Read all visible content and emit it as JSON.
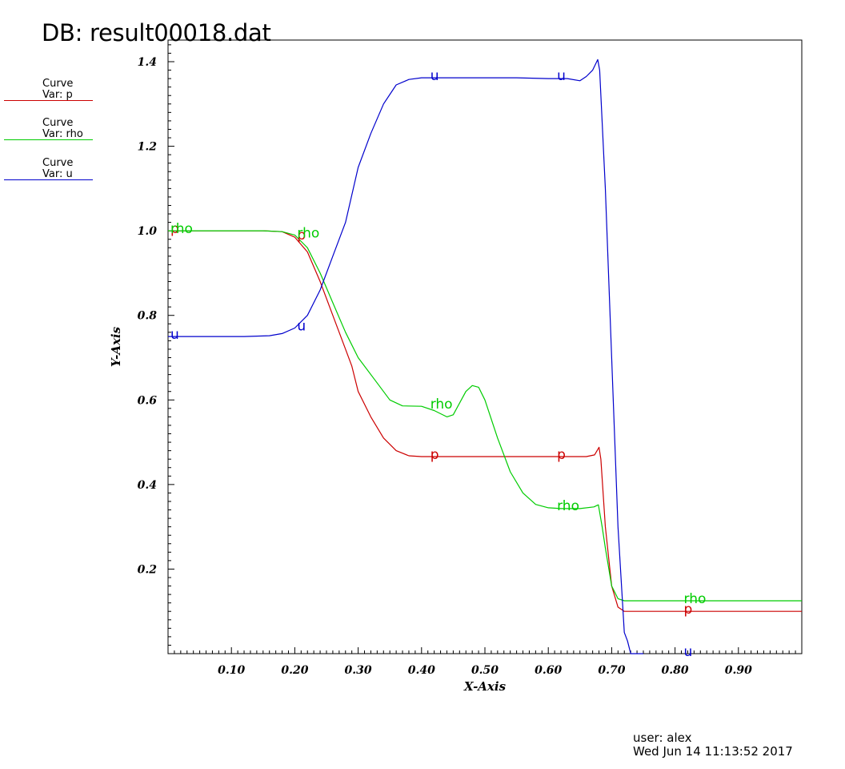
{
  "header": {
    "db_title": "DB: result00018.dat"
  },
  "legend": [
    {
      "line1": "Curve",
      "line2": "Var: p",
      "color": "#cc0000"
    },
    {
      "line1": "Curve",
      "line2": "Var: rho",
      "color": "#00cc00"
    },
    {
      "line1": "Curve",
      "line2": "Var: u",
      "color": "#0000cc"
    }
  ],
  "footer": {
    "user": "user: alex",
    "date": "Wed Jun 14 11:13:52 2017"
  },
  "chart_data": {
    "type": "line",
    "title": "",
    "xlabel": "X-Axis",
    "ylabel": "Y-Axis",
    "xlim": [
      0,
      1
    ],
    "ylim": [
      0,
      1.4
    ],
    "x_ticks": [
      "0.10",
      "0.20",
      "0.30",
      "0.40",
      "0.50",
      "0.60",
      "0.70",
      "0.80",
      "0.90"
    ],
    "x_tick_values": [
      0.1,
      0.2,
      0.3,
      0.4,
      0.5,
      0.6,
      0.7,
      0.8,
      0.9
    ],
    "y_ticks": [
      "0.2",
      "0.4",
      "0.6",
      "0.8",
      "1.0",
      "1.2",
      "1.4"
    ],
    "y_tick_values": [
      0.2,
      0.4,
      0.6,
      0.8,
      1.0,
      1.2,
      1.4
    ],
    "grid": false,
    "legend_position": "top-left",
    "series": [
      {
        "name": "p",
        "color": "#cc0000",
        "points": [
          [
            0.0,
            1.0
          ],
          [
            0.15,
            1.0
          ],
          [
            0.18,
            0.998
          ],
          [
            0.2,
            0.985
          ],
          [
            0.22,
            0.95
          ],
          [
            0.24,
            0.88
          ],
          [
            0.26,
            0.8
          ],
          [
            0.28,
            0.72
          ],
          [
            0.29,
            0.68
          ],
          [
            0.3,
            0.62
          ],
          [
            0.32,
            0.56
          ],
          [
            0.34,
            0.51
          ],
          [
            0.36,
            0.48
          ],
          [
            0.38,
            0.468
          ],
          [
            0.4,
            0.466
          ],
          [
            0.5,
            0.466
          ],
          [
            0.6,
            0.466
          ],
          [
            0.66,
            0.466
          ],
          [
            0.673,
            0.47
          ],
          [
            0.68,
            0.488
          ],
          [
            0.683,
            0.46
          ],
          [
            0.69,
            0.3
          ],
          [
            0.7,
            0.16
          ],
          [
            0.71,
            0.11
          ],
          [
            0.72,
            0.1
          ],
          [
            0.75,
            0.1
          ],
          [
            1.0,
            0.1
          ]
        ],
        "labels": [
          [
            0.0,
            1.0
          ],
          [
            0.2,
            0.985
          ],
          [
            0.41,
            0.466
          ],
          [
            0.61,
            0.466
          ],
          [
            0.81,
            0.1
          ]
        ]
      },
      {
        "name": "rho",
        "color": "#00cc00",
        "points": [
          [
            0.0,
            1.0
          ],
          [
            0.15,
            1.0
          ],
          [
            0.18,
            0.998
          ],
          [
            0.2,
            0.99
          ],
          [
            0.22,
            0.96
          ],
          [
            0.24,
            0.9
          ],
          [
            0.26,
            0.83
          ],
          [
            0.28,
            0.76
          ],
          [
            0.3,
            0.7
          ],
          [
            0.33,
            0.64
          ],
          [
            0.35,
            0.6
          ],
          [
            0.37,
            0.586
          ],
          [
            0.4,
            0.585
          ],
          [
            0.42,
            0.575
          ],
          [
            0.44,
            0.56
          ],
          [
            0.45,
            0.565
          ],
          [
            0.47,
            0.62
          ],
          [
            0.48,
            0.634
          ],
          [
            0.49,
            0.63
          ],
          [
            0.5,
            0.6
          ],
          [
            0.52,
            0.51
          ],
          [
            0.54,
            0.43
          ],
          [
            0.56,
            0.38
          ],
          [
            0.58,
            0.353
          ],
          [
            0.6,
            0.345
          ],
          [
            0.62,
            0.343
          ],
          [
            0.65,
            0.343
          ],
          [
            0.672,
            0.347
          ],
          [
            0.679,
            0.352
          ],
          [
            0.685,
            0.3
          ],
          [
            0.69,
            0.25
          ],
          [
            0.7,
            0.16
          ],
          [
            0.71,
            0.13
          ],
          [
            0.72,
            0.125
          ],
          [
            0.75,
            0.125
          ],
          [
            1.0,
            0.125
          ]
        ],
        "labels": [
          [
            0.0,
            1.0
          ],
          [
            0.2,
            0.99
          ],
          [
            0.41,
            0.585
          ],
          [
            0.61,
            0.345
          ],
          [
            0.81,
            0.125
          ]
        ]
      },
      {
        "name": "u",
        "color": "#0000cc",
        "points": [
          [
            0.0,
            0.75
          ],
          [
            0.12,
            0.75
          ],
          [
            0.16,
            0.752
          ],
          [
            0.18,
            0.757
          ],
          [
            0.2,
            0.77
          ],
          [
            0.22,
            0.8
          ],
          [
            0.24,
            0.86
          ],
          [
            0.26,
            0.94
          ],
          [
            0.28,
            1.02
          ],
          [
            0.3,
            1.15
          ],
          [
            0.32,
            1.23
          ],
          [
            0.34,
            1.3
          ],
          [
            0.36,
            1.345
          ],
          [
            0.38,
            1.358
          ],
          [
            0.4,
            1.362
          ],
          [
            0.45,
            1.362
          ],
          [
            0.5,
            1.362
          ],
          [
            0.55,
            1.362
          ],
          [
            0.6,
            1.36
          ],
          [
            0.63,
            1.36
          ],
          [
            0.65,
            1.355
          ],
          [
            0.66,
            1.365
          ],
          [
            0.67,
            1.38
          ],
          [
            0.678,
            1.405
          ],
          [
            0.681,
            1.38
          ],
          [
            0.69,
            1.1
          ],
          [
            0.7,
            0.7
          ],
          [
            0.71,
            0.3
          ],
          [
            0.72,
            0.05
          ],
          [
            0.725,
            0.03
          ],
          [
            0.73,
            0.0
          ],
          [
            0.75,
            0.0
          ]
        ],
        "labels": [
          [
            0.0,
            0.75
          ],
          [
            0.2,
            0.77
          ],
          [
            0.41,
            1.362
          ],
          [
            0.61,
            1.362
          ],
          [
            0.81,
            0.0
          ]
        ]
      }
    ]
  }
}
